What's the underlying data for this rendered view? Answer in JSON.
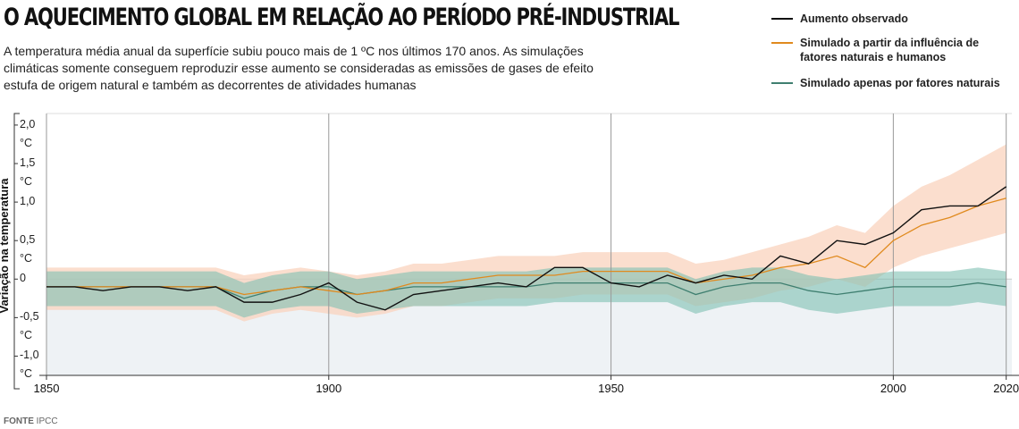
{
  "chart_data": {
    "type": "line",
    "title": "O AQUECIMENTO GLOBAL EM RELAÇÃO AO PERÍODO PRÉ-INDUSTRIAL",
    "subtitle": "A temperatura média anual da superfície subiu pouco mais de 1 ºC nos últimos 170 anos. As simulações climáticas somente conseguem reproduzir esse aumento se consideradas as emissões de gases de efeito estufa de origem natural e também as decorrentes de atividades humanas",
    "ylabel": "Variação na temperatura",
    "source": {
      "label": "FONTE",
      "text": "IPCC"
    },
    "legend": "top-right",
    "x": [
      1850,
      1855,
      1860,
      1865,
      1870,
      1875,
      1880,
      1885,
      1890,
      1895,
      1900,
      1905,
      1910,
      1915,
      1920,
      1925,
      1930,
      1935,
      1940,
      1945,
      1950,
      1955,
      1960,
      1965,
      1970,
      1975,
      1980,
      1985,
      1990,
      1995,
      2000,
      2005,
      2010,
      2015,
      2020
    ],
    "xlim": [
      1850,
      2021
    ],
    "xticks": [
      1850,
      1900,
      1950,
      2000,
      2020
    ],
    "ylim": [
      -1.25,
      2.15
    ],
    "yticks": [
      {
        "value": 2.0,
        "label": "2,0 °C"
      },
      {
        "value": 1.5,
        "label": "1,5 °C"
      },
      {
        "value": 1.0,
        "label": "1,0"
      },
      {
        "value": 0.5,
        "label": "0,5 °C"
      },
      0,
      {
        "value": -0.5,
        "label": "-0,5 °C"
      },
      {
        "value": -1.0,
        "label": "-1,0 °C"
      }
    ],
    "series": [
      {
        "name": "Aumento observado",
        "color": "#111111",
        "values": [
          -0.1,
          -0.1,
          -0.15,
          -0.1,
          -0.1,
          -0.15,
          -0.1,
          -0.3,
          -0.3,
          -0.2,
          -0.05,
          -0.3,
          -0.4,
          -0.2,
          -0.15,
          -0.1,
          -0.05,
          -0.1,
          0.15,
          0.15,
          -0.05,
          -0.1,
          0.05,
          -0.05,
          0.05,
          0,
          0.3,
          0.2,
          0.5,
          0.45,
          0.6,
          0.9,
          0.95,
          0.95,
          1.2
        ]
      },
      {
        "name": "Simulado a partir da influência de fatores naturais e humanos",
        "color": "#e08a1e",
        "band_color": "#f9d3bd",
        "values": [
          -0.1,
          -0.1,
          -0.1,
          -0.1,
          -0.1,
          -0.1,
          -0.1,
          -0.2,
          -0.15,
          -0.1,
          -0.15,
          -0.2,
          -0.15,
          -0.05,
          -0.05,
          0,
          0.05,
          0.05,
          0.05,
          0.1,
          0.1,
          0.1,
          0.1,
          -0.05,
          0,
          0.05,
          0.15,
          0.2,
          0.3,
          0.15,
          0.5,
          0.7,
          0.8,
          0.95,
          1.05
        ],
        "upper": [
          0.15,
          0.15,
          0.15,
          0.15,
          0.15,
          0.15,
          0.15,
          0.05,
          0.1,
          0.15,
          0.1,
          0.05,
          0.1,
          0.2,
          0.2,
          0.25,
          0.3,
          0.3,
          0.3,
          0.35,
          0.35,
          0.35,
          0.35,
          0.2,
          0.25,
          0.35,
          0.45,
          0.55,
          0.7,
          0.6,
          0.95,
          1.2,
          1.35,
          1.55,
          1.75
        ],
        "lower": [
          -0.4,
          -0.4,
          -0.4,
          -0.4,
          -0.4,
          -0.4,
          -0.4,
          -0.55,
          -0.45,
          -0.4,
          -0.45,
          -0.5,
          -0.45,
          -0.35,
          -0.35,
          -0.3,
          -0.25,
          -0.25,
          -0.25,
          -0.2,
          -0.2,
          -0.2,
          -0.2,
          -0.35,
          -0.3,
          -0.25,
          -0.15,
          -0.1,
          0,
          -0.1,
          0.15,
          0.3,
          0.4,
          0.5,
          0.6
        ]
      },
      {
        "name": "Simulado apenas por fatores naturais",
        "color": "#3f7f70",
        "band_color": "#7fbfb2",
        "values": [
          -0.1,
          -0.1,
          -0.1,
          -0.1,
          -0.1,
          -0.1,
          -0.1,
          -0.25,
          -0.15,
          -0.1,
          -0.1,
          -0.2,
          -0.15,
          -0.1,
          -0.1,
          -0.1,
          -0.1,
          -0.1,
          -0.05,
          -0.05,
          -0.05,
          -0.05,
          -0.05,
          -0.2,
          -0.1,
          -0.05,
          -0.05,
          -0.15,
          -0.2,
          -0.15,
          -0.1,
          -0.1,
          -0.1,
          -0.05,
          -0.1
        ],
        "upper": [
          0.1,
          0.1,
          0.1,
          0.1,
          0.1,
          0.1,
          0.1,
          -0.05,
          0.05,
          0.1,
          0.1,
          0,
          0.05,
          0.1,
          0.1,
          0.1,
          0.1,
          0.1,
          0.15,
          0.15,
          0.15,
          0.15,
          0.15,
          0,
          0.1,
          0.15,
          0.15,
          0.05,
          0,
          0.05,
          0.1,
          0.1,
          0.1,
          0.15,
          0.1
        ],
        "lower": [
          -0.35,
          -0.35,
          -0.35,
          -0.35,
          -0.35,
          -0.35,
          -0.35,
          -0.5,
          -0.4,
          -0.35,
          -0.35,
          -0.45,
          -0.4,
          -0.35,
          -0.35,
          -0.35,
          -0.35,
          -0.35,
          -0.3,
          -0.3,
          -0.3,
          -0.3,
          -0.3,
          -0.45,
          -0.35,
          -0.3,
          -0.3,
          -0.4,
          -0.45,
          -0.4,
          -0.35,
          -0.35,
          -0.35,
          -0.3,
          -0.35
        ]
      }
    ]
  }
}
